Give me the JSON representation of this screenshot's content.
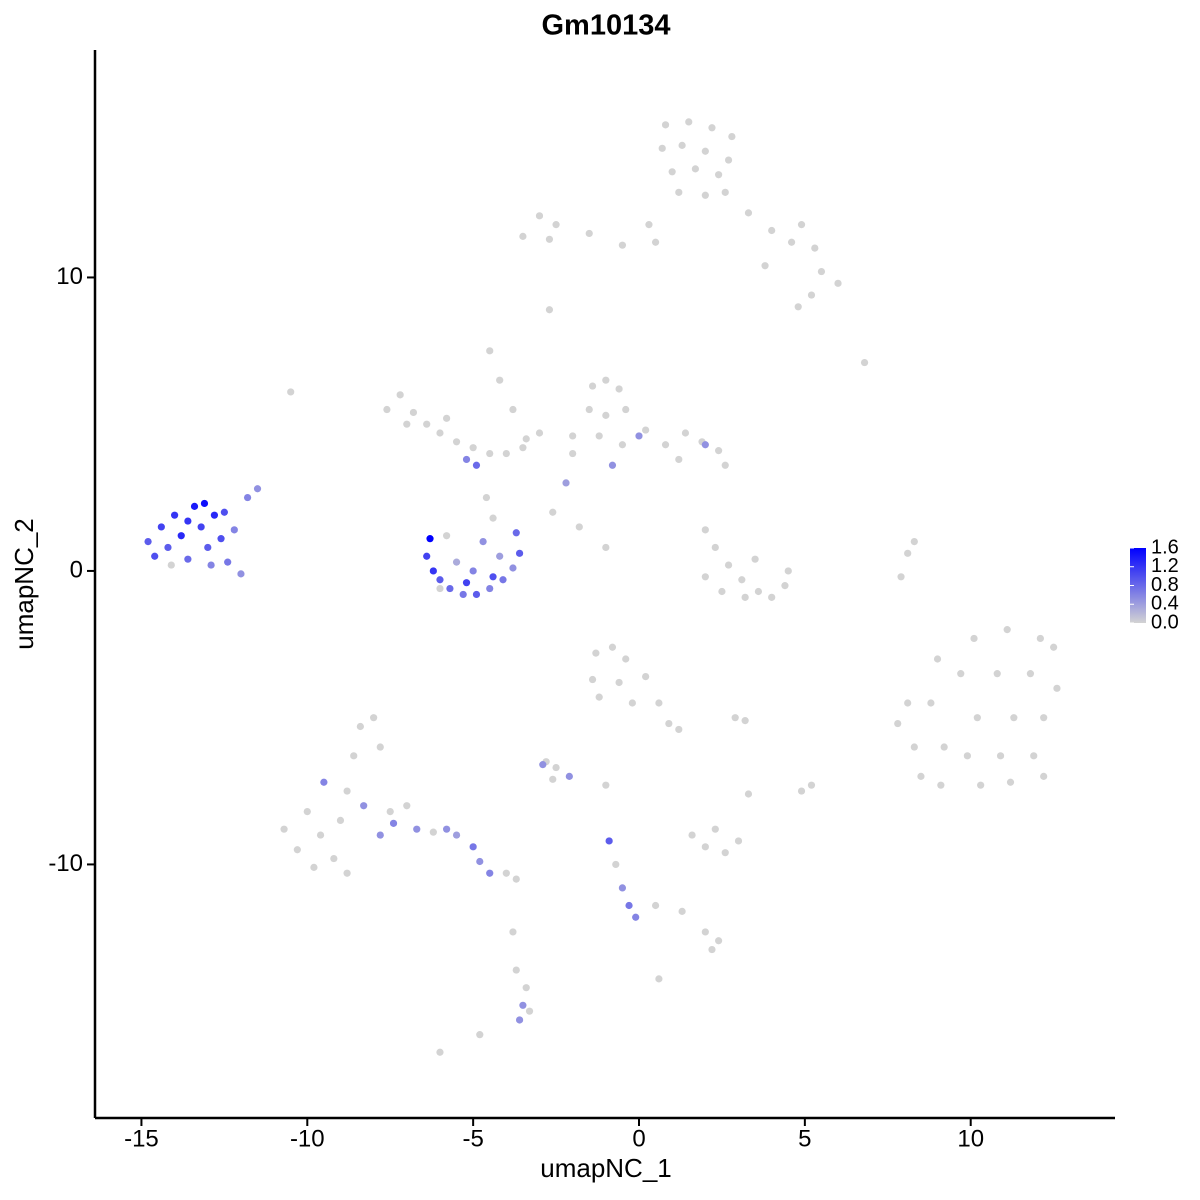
{
  "chart_data": {
    "type": "scatter",
    "title": "Gm10134",
    "x_label": "umapNC_1",
    "y_label": "umapNC_2",
    "xlim": [
      -16.4,
      14.35
    ],
    "ylim": [
      -18.64,
      17.75
    ],
    "xticks": [
      -15,
      -10,
      -5,
      0,
      5,
      10
    ],
    "yticks": [
      -10,
      0,
      10
    ],
    "color_low": "#d3d3d3",
    "color_high": "#0000ff",
    "clim": [
      0,
      1.6
    ],
    "cticks": [
      {
        "value": 0,
        "label": "0.0"
      },
      0.4,
      0.8,
      1.2,
      1.6
    ],
    "x": [
      0.8,
      1.5,
      2.2,
      2.8,
      0.7,
      1.3,
      2.0,
      2.7,
      1.0,
      1.7,
      2.4,
      1.2,
      2.0,
      2.6,
      3.3,
      4.0,
      4.6,
      5.3,
      5.5,
      6.0,
      5.2,
      4.8,
      3.8,
      0.5,
      -0.5,
      -1.5,
      -2.5,
      -3.0,
      -2.7,
      -3.5,
      0.3,
      4.9,
      -2.7,
      -7.6,
      -7.2,
      -6.8,
      -6.4,
      -6.0,
      -5.5,
      -5.0,
      -4.5,
      -4.0,
      -3.5,
      -7.0,
      -5.8,
      -4.5,
      -4.2,
      -3.8,
      -3.4,
      -3.0,
      -10.5,
      -5.2,
      -4.9,
      -4.6,
      -4.4,
      -6.3,
      -6.4,
      -6.2,
      -6.0,
      -5.7,
      -5.3,
      -4.9,
      -4.5,
      -4.1,
      -3.8,
      -3.6,
      -3.7,
      -4.2,
      -5.0,
      -5.5,
      -4.7,
      -5.8,
      -6.0,
      -4.4,
      -5.2,
      -14.8,
      -14.6,
      -14.4,
      -14.2,
      -14.0,
      -13.8,
      -13.6,
      -13.4,
      -13.2,
      -13.0,
      -12.8,
      -12.6,
      -12.4,
      -12.2,
      -12.0,
      -12.5,
      -13.1,
      -14.1,
      -12.9,
      -11.8,
      -11.5,
      -13.6,
      -1.4,
      -1.0,
      -0.6,
      -1.5,
      -1.0,
      -0.4,
      -1.2,
      -0.5,
      0.2,
      0.0,
      0.8,
      1.4,
      1.9,
      2.4,
      2.6,
      2.0,
      1.2,
      -0.8,
      -2.0,
      -2.2,
      -2.6,
      -1.8,
      -1.0,
      -2.0,
      2.0,
      2.3,
      2.7,
      3.1,
      3.6,
      4.0,
      4.4,
      3.2,
      2.0,
      2.5,
      4.5,
      3.5,
      7.9,
      8.1,
      8.3,
      6.8,
      8.1,
      8.3,
      9.0,
      8.8,
      9.2,
      9.1,
      10.1,
      9.7,
      10.2,
      9.9,
      10.3,
      11.1,
      10.8,
      11.3,
      10.9,
      11.2,
      12.1,
      11.8,
      12.2,
      11.9,
      12.6,
      12.5,
      7.8,
      8.5,
      12.2,
      -10.7,
      -10.3,
      -10.0,
      -9.6,
      -9.5,
      -9.2,
      -9.0,
      -8.8,
      -8.6,
      -8.4,
      -8.0,
      -7.8,
      -8.3,
      -7.8,
      -7.5,
      -7.4,
      -7.0,
      -6.7,
      -6.2,
      -5.5,
      -5.0,
      -4.8,
      -4.5,
      -4.0,
      -3.7,
      -9.8,
      -8.8,
      -5.8,
      -1.3,
      -0.8,
      -0.4,
      -1.4,
      -0.6,
      0.2,
      -1.2,
      -0.2,
      0.6,
      0.9,
      1.2,
      2.9,
      1.6,
      2.0,
      2.6,
      3.0,
      2.3,
      -0.9,
      -0.7,
      -0.5,
      -0.3,
      -0.1,
      0.5,
      1.3,
      2.0,
      2.4,
      2.2,
      -3.7,
      -3.4,
      -3.5,
      -3.3,
      -3.6,
      -3.8,
      -6.0,
      -4.8,
      0.6,
      -2.8,
      -2.5,
      -2.1,
      -2.6,
      -1.0,
      3.2,
      4.9,
      5.2,
      3.3,
      -2.9
    ],
    "y": [
      15.2,
      15.3,
      15.1,
      14.8,
      14.4,
      14.5,
      14.3,
      14.0,
      13.6,
      13.7,
      13.5,
      12.9,
      12.8,
      12.9,
      12.2,
      11.6,
      11.2,
      11.0,
      10.2,
      9.8,
      9.4,
      9.0,
      10.4,
      11.2,
      11.1,
      11.5,
      11.8,
      12.1,
      11.3,
      11.4,
      11.8,
      11.8,
      8.9,
      5.5,
      6.0,
      5.4,
      5.0,
      4.7,
      4.4,
      4.2,
      4.0,
      4.0,
      4.2,
      5.0,
      5.2,
      7.5,
      6.5,
      5.5,
      4.5,
      4.7,
      6.1,
      3.8,
      3.6,
      2.5,
      1.8,
      1.1,
      0.5,
      0.0,
      -0.3,
      -0.6,
      -0.8,
      -0.8,
      -0.6,
      -0.3,
      0.1,
      0.6,
      1.3,
      0.5,
      0.0,
      0.3,
      1.0,
      1.2,
      -0.6,
      -0.2,
      -0.4,
      1.0,
      0.5,
      1.5,
      0.8,
      1.9,
      1.2,
      0.4,
      2.2,
      1.5,
      0.8,
      1.9,
      1.1,
      0.3,
      1.4,
      -0.1,
      2.0,
      2.3,
      0.2,
      0.2,
      2.5,
      2.8,
      1.7,
      6.3,
      6.5,
      6.2,
      5.5,
      5.3,
      5.5,
      4.6,
      4.3,
      4.8,
      4.6,
      4.3,
      4.7,
      4.4,
      4.1,
      3.6,
      4.3,
      3.8,
      3.6,
      4.0,
      3.0,
      2.0,
      1.5,
      0.8,
      4.6,
      1.4,
      0.8,
      0.2,
      -0.3,
      -0.7,
      -0.9,
      -0.5,
      -0.9,
      -0.2,
      -0.7,
      0.0,
      0.4,
      -0.2,
      0.6,
      1.0,
      7.1,
      -4.5,
      -6,
      -3,
      -4.5,
      -6,
      -7.3,
      -2.3,
      -3.5,
      -5,
      -6.3,
      -7.3,
      -2,
      -3.5,
      -5,
      -6.3,
      -7.2,
      -2.3,
      -3.5,
      -5,
      -6.3,
      -4,
      -2.6,
      -5.2,
      -7,
      -7,
      -8.8,
      -9.5,
      -8.2,
      -9.0,
      -7.2,
      -9.8,
      -8.5,
      -7.5,
      -6.3,
      -5.3,
      -5.0,
      -6.0,
      -8.0,
      -9.0,
      -8.2,
      -8.6,
      -8.0,
      -8.8,
      -8.9,
      -9.0,
      -9.4,
      -9.9,
      -10.3,
      -10.3,
      -10.5,
      -10.1,
      -10.3,
      -8.8,
      -2.8,
      -2.6,
      -3.0,
      -3.7,
      -3.8,
      -3.6,
      -4.3,
      -4.5,
      -4.5,
      -5.2,
      -5.4,
      -5.0,
      -9.0,
      -9.4,
      -9.6,
      -9.2,
      -8.8,
      -9.2,
      -10.0,
      -10.8,
      -11.4,
      -11.8,
      -11.4,
      -11.6,
      -12.3,
      -12.6,
      -12.9,
      -13.6,
      -14.2,
      -14.8,
      -15.0,
      -15.3,
      -12.3,
      -16.4,
      -15.8,
      -13.9,
      -6.5,
      -6.7,
      -7.0,
      -7.1,
      -7.3,
      -5.1,
      -7.5,
      -7.3,
      -7.6,
      -6.6
    ],
    "values": [
      0,
      0,
      0,
      0,
      0,
      0,
      0,
      0,
      0,
      0,
      0,
      0,
      0,
      0,
      0,
      0,
      0,
      0,
      0,
      0,
      0,
      0,
      0,
      0,
      0,
      0,
      0,
      0,
      0,
      0,
      0,
      0,
      0,
      0,
      0,
      0,
      0,
      0,
      0,
      0,
      0,
      0,
      0,
      0,
      0,
      0,
      0,
      0,
      0,
      0,
      0,
      0.6,
      0.8,
      0,
      0,
      1.6,
      1.1,
      1.2,
      0.9,
      0.8,
      0.7,
      0.9,
      0.6,
      0.7,
      0.5,
      0.9,
      0.8,
      0.4,
      0.6,
      0.3,
      0.5,
      0,
      0,
      1.0,
      1.1,
      0.9,
      1.0,
      1.1,
      0.9,
      1.2,
      1.3,
      0.8,
      1.4,
      1.1,
      0.9,
      1.3,
      1.0,
      0.7,
      0.6,
      0.5,
      1.0,
      1.5,
      0,
      0.6,
      0.6,
      0.5,
      1.2,
      0,
      0,
      0,
      0,
      0,
      0,
      0,
      0,
      0,
      0.5,
      0,
      0,
      0,
      0,
      0,
      0.5,
      0,
      0.5,
      0,
      0.4,
      0,
      0,
      0,
      0,
      0,
      0,
      0,
      0,
      0,
      0,
      0,
      0,
      0,
      0,
      0,
      0,
      0,
      0,
      0,
      0,
      0,
      0,
      0,
      0,
      0,
      0,
      0,
      0,
      0,
      0,
      0,
      0,
      0,
      0,
      0,
      0,
      0,
      0,
      0,
      0,
      0,
      0,
      0,
      0,
      0,
      0,
      0,
      0,
      0,
      0.6,
      0,
      0,
      0,
      0,
      0,
      0,
      0,
      0.5,
      0.5,
      0,
      0.6,
      0,
      0.5,
      0,
      0.4,
      0.7,
      0.5,
      0.6,
      0,
      0,
      0,
      0,
      0.5,
      0,
      0,
      0,
      0,
      0,
      0,
      0,
      0,
      0,
      0,
      0,
      0,
      0,
      0,
      0,
      0,
      0,
      0.9,
      0,
      0.5,
      0.7,
      0.6,
      0,
      0,
      0,
      0,
      0,
      0,
      0,
      0.5,
      0,
      0.5,
      0,
      0,
      0,
      0,
      0,
      0,
      0.5,
      0,
      0,
      0,
      0,
      0,
      0,
      0.5
    ]
  }
}
